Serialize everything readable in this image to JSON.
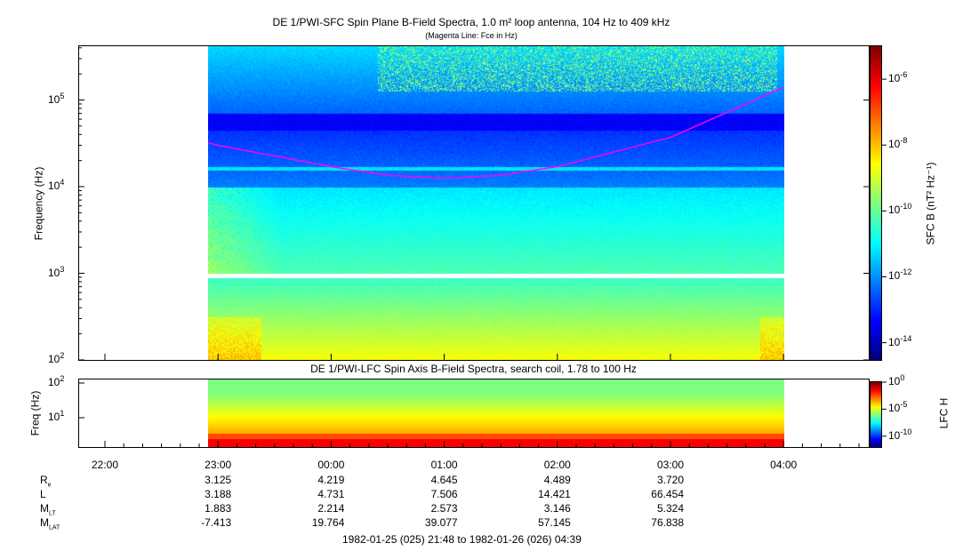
{
  "chart_data": [
    {
      "type": "heatmap",
      "title": "DE 1/PWI-SFC  Spin Plane B-Field Spectra, 1.0 m² loop antenna, 104 Hz to 409 kHz",
      "subtitle": "(Magenta Line: Fce in Hz)",
      "ylabel": "Frequency (Hz)",
      "yscale": "log",
      "ylim": [
        100,
        409000
      ],
      "yticks": [
        {
          "v": 100,
          "label": "10",
          "exp": "2"
        },
        {
          "v": 1000,
          "label": "10",
          "exp": "3"
        },
        {
          "v": 10000,
          "label": "10",
          "exp": "4"
        },
        {
          "v": 100000,
          "label": "10",
          "exp": "5"
        }
      ],
      "colorbar": {
        "label": "SFC B (nT² Hz⁻¹)",
        "scale": "log",
        "range": [
          3e-15,
          1e-05
        ],
        "ticks": [
          {
            "v": -14,
            "label": "10",
            "exp": "-14"
          },
          {
            "v": -12,
            "label": "10",
            "exp": "-12"
          },
          {
            "v": -10,
            "label": "10",
            "exp": "-10"
          },
          {
            "v": -8,
            "label": "10",
            "exp": "-8"
          },
          {
            "v": -6,
            "label": "10",
            "exp": "-6"
          }
        ]
      },
      "fce_line": {
        "color": "#ff00ff",
        "points": [
          [
            "22:55",
            32000
          ],
          [
            "23:00",
            30000
          ],
          [
            "00:00",
            17000
          ],
          [
            "00:30",
            13500
          ],
          [
            "01:00",
            12500
          ],
          [
            "01:30",
            13500
          ],
          [
            "02:00",
            17000
          ],
          [
            "03:00",
            37000
          ],
          [
            "04:00",
            140000
          ]
        ]
      },
      "data_gap_hz": [
        900,
        1000
      ]
    },
    {
      "type": "heatmap",
      "title": "DE 1/PWI-LFC  Spin Axis B-Field Spectra, search coil, 1.78 to 100 Hz",
      "ylabel": "Freq (Hz)",
      "yscale": "log",
      "ylim": [
        1.78,
        120
      ],
      "yticks": [
        {
          "v": 10,
          "label": "10",
          "exp": "1"
        },
        {
          "v": 100,
          "label": "10",
          "exp": "2"
        }
      ],
      "colorbar": {
        "label": "LFC H",
        "scale": "log",
        "range": [
          1e-12,
          1
        ],
        "ticks": [
          {
            "v": 0,
            "label": "10",
            "exp": "0"
          },
          {
            "v": -5,
            "label": "10",
            "exp": "-5"
          },
          {
            "v": -10,
            "label": "10",
            "exp": "-10"
          }
        ]
      }
    }
  ],
  "xaxis": {
    "ticks": [
      "22:00",
      "23:00",
      "00:00",
      "01:00",
      "02:00",
      "03:00",
      "04:00"
    ],
    "data_start": "22:55",
    "data_end": "04:00",
    "range_label": "1982-01-25 (025) 21:48 to 1982-01-26 (026) 04:39"
  },
  "ephemeris": [
    {
      "name": "R",
      "sub": "e",
      "values": [
        "3.125",
        "4.219",
        "4.645",
        "4.489",
        "3.720"
      ]
    },
    {
      "name": "L",
      "sub": "",
      "values": [
        "3.188",
        "4.731",
        "7.506",
        "14.421",
        "66.454"
      ]
    },
    {
      "name": "M",
      "sub": "LT",
      "values": [
        "1.883",
        "2.214",
        "2.573",
        "3.146",
        "5.324"
      ]
    },
    {
      "name": "M",
      "sub": "LAT",
      "values": [
        "-7.413",
        "19.764",
        "39.077",
        "57.145",
        "76.838"
      ]
    }
  ]
}
